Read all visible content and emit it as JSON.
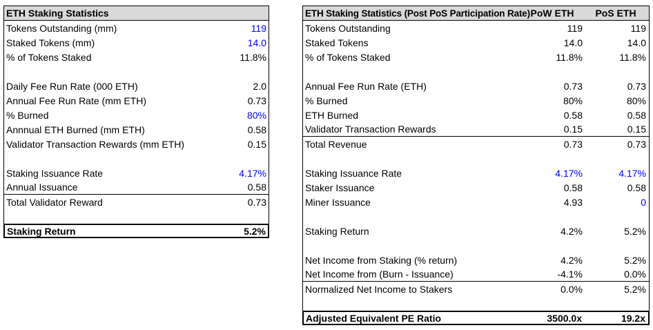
{
  "colors": {
    "accent_blue": "#0000FF",
    "header_bg": "#D9D9D9",
    "border": "#000000",
    "text": "#000000",
    "background": "#FFFFFF"
  },
  "tables": [
    {
      "id": "left-table",
      "title": "ETH Staking Statistics",
      "col_headers": [],
      "rows": [
        {
          "label": "Tokens Outstanding (mm)",
          "values": [
            "119"
          ],
          "value_colors": [
            "blue"
          ]
        },
        {
          "label": "Staked Tokens (mm)",
          "values": [
            "14.0"
          ],
          "value_colors": [
            "blue"
          ]
        },
        {
          "label": "% of Tokens Staked",
          "values": [
            "11.8%"
          ]
        },
        {
          "blank": true
        },
        {
          "label": "Daily Fee Run Rate (000 ETH)",
          "values": [
            "2.0"
          ]
        },
        {
          "label": "Annual Fee Run Rate (mm ETH)",
          "values": [
            "0.73"
          ]
        },
        {
          "label": "% Burned",
          "values": [
            "80%"
          ],
          "value_colors": [
            "blue"
          ]
        },
        {
          "label": "Annnual ETH Burned (mm ETH)",
          "values": [
            "0.58"
          ]
        },
        {
          "label": "Validator Transaction Rewards (mm ETH)",
          "values": [
            "0.15"
          ]
        },
        {
          "blank": true
        },
        {
          "label": "Staking Issuance Rate",
          "values": [
            "4.17%"
          ],
          "value_colors": [
            "blue"
          ]
        },
        {
          "label": "Annual Issuance",
          "values": [
            "0.58"
          ],
          "rule_below": true
        },
        {
          "label": "Total Validator Reward",
          "values": [
            "0.73"
          ]
        },
        {
          "blank": true
        },
        {
          "label": "Staking Return",
          "values": [
            "5.2%"
          ],
          "total": true
        }
      ]
    },
    {
      "id": "right-table",
      "title": "ETH Staking Statistics (Post PoS Participation Rate)",
      "col_headers": [
        "PoW ETH",
        "PoS ETH"
      ],
      "rows": [
        {
          "label": "Tokens Outstanding",
          "values": [
            "119",
            "119"
          ]
        },
        {
          "label": "Staked Tokens",
          "values": [
            "14.0",
            "14.0"
          ]
        },
        {
          "label": "% of Tokens Staked",
          "values": [
            "11.8%",
            "11.8%"
          ]
        },
        {
          "blank": true
        },
        {
          "label": "Annual Fee Run Rate (ETH)",
          "values": [
            "0.73",
            "0.73"
          ]
        },
        {
          "label": "% Burned",
          "values": [
            "80%",
            "80%"
          ]
        },
        {
          "label": "ETH Burned",
          "values": [
            "0.58",
            "0.58"
          ]
        },
        {
          "label": "Validator Transaction Rewards",
          "values": [
            "0.15",
            "0.15"
          ],
          "rule_below": true
        },
        {
          "label": "Total Revenue",
          "values": [
            "0.73",
            "0.73"
          ]
        },
        {
          "blank": true
        },
        {
          "label": "Staking Issuance Rate",
          "values": [
            "4.17%",
            "4.17%"
          ],
          "value_colors": [
            "blue",
            "blue"
          ]
        },
        {
          "label": "Staker Issuance",
          "values": [
            "0.58",
            "0.58"
          ]
        },
        {
          "label": "Miner Issuance",
          "values": [
            "4.93",
            "0"
          ],
          "value_colors": [
            null,
            "blue"
          ]
        },
        {
          "blank": true
        },
        {
          "label": "Staking Return",
          "values": [
            "4.2%",
            "5.2%"
          ]
        },
        {
          "blank": true
        },
        {
          "label": "Net Income from Staking (% return)",
          "values": [
            "4.2%",
            "5.2%"
          ]
        },
        {
          "label": "Net Income from (Burn - Issuance)",
          "values": [
            "-4.1%",
            "0.0%"
          ],
          "rule_below": true
        },
        {
          "label": "Normalized Net Income to Stakers",
          "values": [
            "0.0%",
            "5.2%"
          ]
        },
        {
          "blank": true
        },
        {
          "label": "Adjusted Equivalent PE Ratio",
          "values": [
            "3500.0x",
            "19.2x"
          ],
          "total": true
        }
      ]
    }
  ]
}
